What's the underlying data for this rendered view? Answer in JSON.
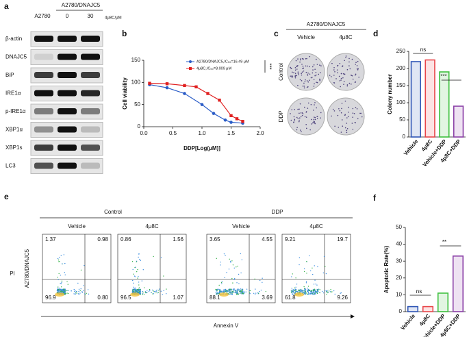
{
  "blot": {
    "label": "a",
    "cell_lines": [
      "A2780",
      "A2780/DNAJC5"
    ],
    "doses": [
      "0",
      "30"
    ],
    "dose_unit": "4μ8C/μM",
    "rows": [
      "β-actin",
      "DNAJC5",
      "BiP",
      "IRE1α",
      "p-IRE1α",
      "XBP1u",
      "XBP1s",
      "LC3"
    ]
  },
  "colony": {
    "label": "c",
    "title": "A2780/DNAJC5",
    "columns": [
      "Vehicle",
      "4μ8C"
    ],
    "rows": [
      "Control",
      "DDP"
    ]
  },
  "flow": {
    "label": "e",
    "groups": [
      "Control",
      "DDP"
    ],
    "ylabel": "PI",
    "row_label": "A2780/DNAJC5",
    "xlabel": "Annexin V",
    "plots": [
      {
        "title": "Vehicle",
        "quadrants": [
          "1.37",
          "0.98",
          "96.9",
          "0.80"
        ]
      },
      {
        "title": "4μ8C",
        "quadrants": [
          "0.86",
          "1.56",
          "96.5",
          "1.07"
        ]
      },
      {
        "title": "Vehicle",
        "quadrants": [
          "3.65",
          "4.55",
          "88.1",
          "3.69"
        ]
      },
      {
        "title": "4μ8C",
        "quadrants": [
          "9.21",
          "19.7",
          "61.8",
          "9.26"
        ]
      }
    ]
  },
  "chart_data": [
    {
      "type": "line",
      "label": "b",
      "xlabel": "DDP[Log(μM)]",
      "ylabel": "Cell viability",
      "annotations": [
        "***"
      ],
      "xlim": [
        0,
        2
      ],
      "xticks": [
        {
          "value": 0,
          "label": "0.0"
        },
        0.5,
        {
          "value": 1,
          "label": "1.0"
        },
        1.5,
        {
          "value": 2,
          "label": "2.0"
        }
      ],
      "ylim": [
        0,
        150
      ],
      "yticks": [
        0,
        50,
        100,
        150
      ],
      "series": [
        {
          "name": "A2780/DNAJC5,IC₅₀=16.49 μM",
          "color": "#2a5cc7",
          "marker": "circle",
          "x": [
            0.1,
            0.4,
            0.7,
            1.0,
            1.2,
            1.4,
            1.5,
            1.7
          ],
          "values": [
            95,
            88,
            75,
            50,
            30,
            15,
            10,
            8
          ]
        },
        {
          "name": "4μ8C,IC₅₀=8.009 μM",
          "color": "#e02020",
          "marker": "square",
          "x": [
            0.1,
            0.4,
            0.7,
            0.9,
            1.1,
            1.3,
            1.5,
            1.6,
            1.7
          ],
          "values": [
            98,
            97,
            93,
            90,
            75,
            60,
            25,
            18,
            12
          ]
        }
      ]
    },
    {
      "type": "bar",
      "label": "d",
      "ylabel": "Colony number",
      "annotations": [
        "ns",
        "***"
      ],
      "categories": [
        "Vehicle",
        "4μ8C",
        "Vehicle+DDP",
        "4μ8C+DDP"
      ],
      "values": [
        220,
        225,
        190,
        90
      ],
      "colors": [
        "#2f55b5",
        "#e8464a",
        "#3cbf3c",
        "#8a3fa6"
      ],
      "ylim": [
        0,
        250
      ],
      "yticks": [
        0,
        50,
        100,
        150,
        200,
        250
      ]
    },
    {
      "type": "bar",
      "label": "f",
      "ylabel": "Apoptotic Rate(%)",
      "annotations": [
        "ns",
        "**"
      ],
      "categories": [
        "Vehicle",
        "4μ8C",
        "Vehicle+DDP",
        "4μ8C+DDP"
      ],
      "values": [
        3,
        3,
        11,
        33
      ],
      "colors": [
        "#2f55b5",
        "#e8464a",
        "#3cbf3c",
        "#8a3fa6"
      ],
      "ylim": [
        0,
        50
      ],
      "yticks": [
        0,
        10,
        20,
        30,
        40,
        50
      ]
    }
  ]
}
